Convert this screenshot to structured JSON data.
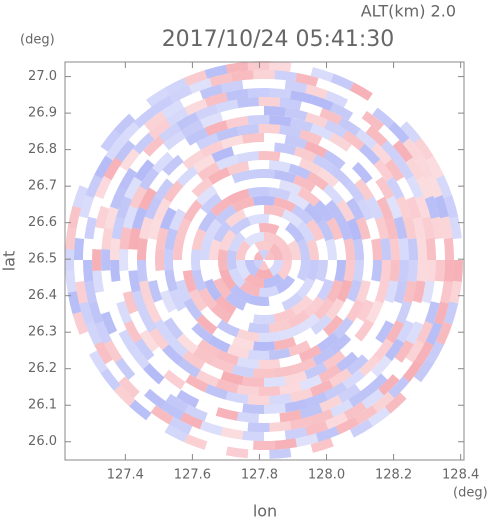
{
  "chart_data": {
    "type": "radar-ppi",
    "title": "2017/10/24 05:41:30",
    "altitude_label": "ALT(km) 2.0",
    "x_label": "lon",
    "y_label": "lat",
    "x_unit": "(deg)",
    "y_unit": "(deg)",
    "xlim": [
      127.22,
      128.41
    ],
    "ylim": [
      25.95,
      27.04
    ],
    "xticks": [
      127.4,
      127.6,
      127.8,
      {
        "value": 128.0,
        "label": "128.0"
      },
      128.2,
      128.4
    ],
    "yticks": [
      {
        "value": 26.0,
        "label": "26.0"
      },
      26.1,
      26.2,
      26.3,
      26.4,
      26.5,
      26.6,
      26.7,
      26.8,
      26.9,
      {
        "value": 27.0,
        "label": "27.0"
      }
    ]
  }
}
